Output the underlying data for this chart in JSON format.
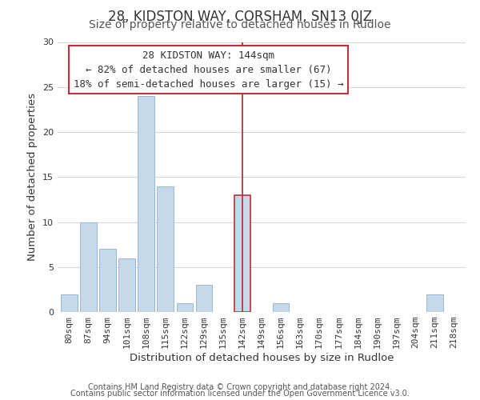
{
  "title": "28, KIDSTON WAY, CORSHAM, SN13 0JZ",
  "subtitle": "Size of property relative to detached houses in Rudloe",
  "xlabel": "Distribution of detached houses by size in Rudloe",
  "ylabel": "Number of detached properties",
  "footer_line1": "Contains HM Land Registry data © Crown copyright and database right 2024.",
  "footer_line2": "Contains public sector information licensed under the Open Government Licence v3.0.",
  "bins": [
    "80sqm",
    "87sqm",
    "94sqm",
    "101sqm",
    "108sqm",
    "115sqm",
    "122sqm",
    "129sqm",
    "135sqm",
    "142sqm",
    "149sqm",
    "156sqm",
    "163sqm",
    "170sqm",
    "177sqm",
    "184sqm",
    "190sqm",
    "197sqm",
    "204sqm",
    "211sqm",
    "218sqm"
  ],
  "values": [
    2,
    10,
    7,
    6,
    24,
    14,
    1,
    3,
    0,
    13,
    0,
    1,
    0,
    0,
    0,
    0,
    0,
    0,
    0,
    2,
    0
  ],
  "bar_color": "#c5d8ea",
  "bar_edge_color": "#9bb8d0",
  "highlight_bar_index": 9,
  "highlight_bar_edge_color": "#c0303a",
  "vline_x_index": 9,
  "vline_color": "#c0303a",
  "annotation_title": "28 KIDSTON WAY: 144sqm",
  "annotation_line1": "← 82% of detached houses are smaller (67)",
  "annotation_line2": "18% of semi-detached houses are larger (15) →",
  "annotation_box_facecolor": "#ffffff",
  "annotation_box_edge_color": "#c0303a",
  "ylim": [
    0,
    30
  ],
  "yticks": [
    0,
    5,
    10,
    15,
    20,
    25,
    30
  ],
  "bg_color": "#ffffff",
  "plot_bg_color": "#ffffff",
  "grid_color": "#d8d8d8",
  "title_fontsize": 12,
  "subtitle_fontsize": 10,
  "axis_label_fontsize": 9.5,
  "tick_fontsize": 8,
  "annotation_fontsize": 9,
  "footer_fontsize": 7
}
